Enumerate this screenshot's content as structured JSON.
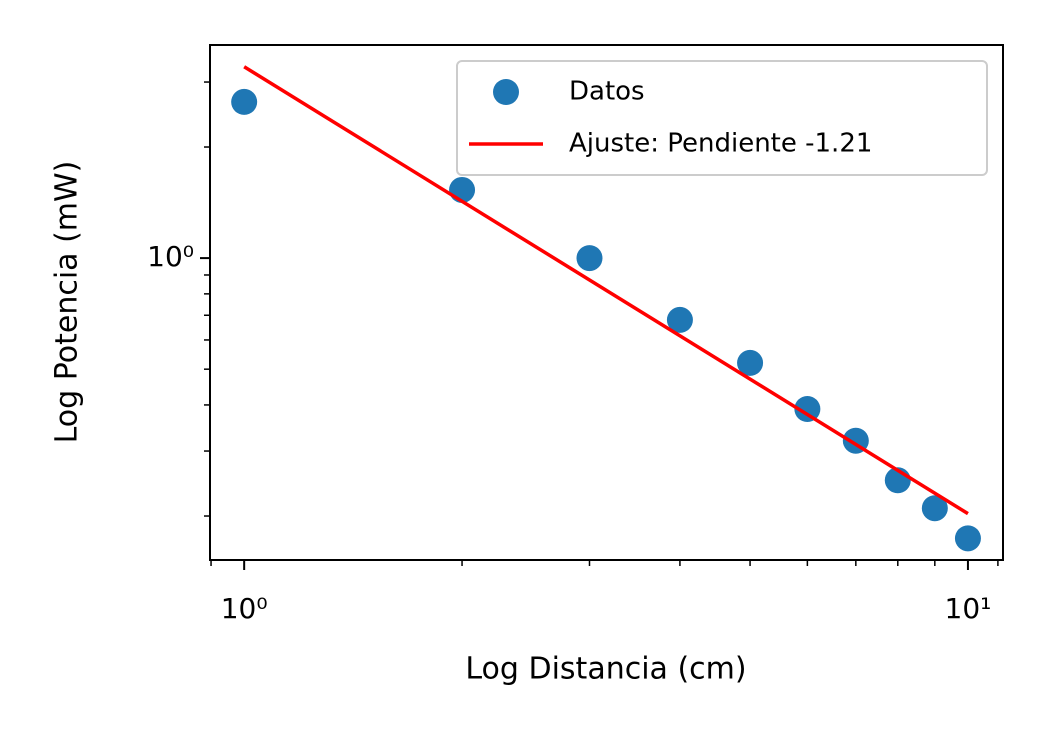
{
  "chart_data": {
    "type": "scatter",
    "xlabel": "Log Distancia (cm)",
    "ylabel": "Log Potencia (mW)",
    "xscale": "log",
    "yscale": "log",
    "xlim": [
      0.897,
      11.18
    ],
    "ylim": [
      0.152,
      3.78
    ],
    "xticks": [
      {
        "value": 1,
        "label": "10⁰"
      },
      {
        "value": 10,
        "label": "10¹"
      }
    ],
    "yticks": [
      {
        "value": 1,
        "label": "10⁰"
      }
    ],
    "xticks_minor": [
      0.9,
      2,
      3,
      4,
      5,
      6,
      7,
      8,
      9,
      11
    ],
    "yticks_minor": [
      0.2,
      0.3,
      0.4,
      0.5,
      0.6,
      0.7,
      0.8,
      0.9,
      2,
      3
    ],
    "legend": "upper right",
    "series": [
      {
        "name": "Datos",
        "kind": "scatter",
        "color": "#1f77b4",
        "x": [
          1,
          2,
          3,
          4,
          5,
          6,
          7,
          8,
          9,
          10
        ],
        "values": [
          2.65,
          1.53,
          1.0,
          0.68,
          0.52,
          0.39,
          0.32,
          0.25,
          0.21,
          0.174
        ]
      },
      {
        "name": "Ajuste: Pendiente -1.21",
        "kind": "line",
        "color": "#ff0000",
        "x": [
          1,
          10
        ],
        "values": [
          3.3,
          0.203
        ]
      }
    ]
  }
}
